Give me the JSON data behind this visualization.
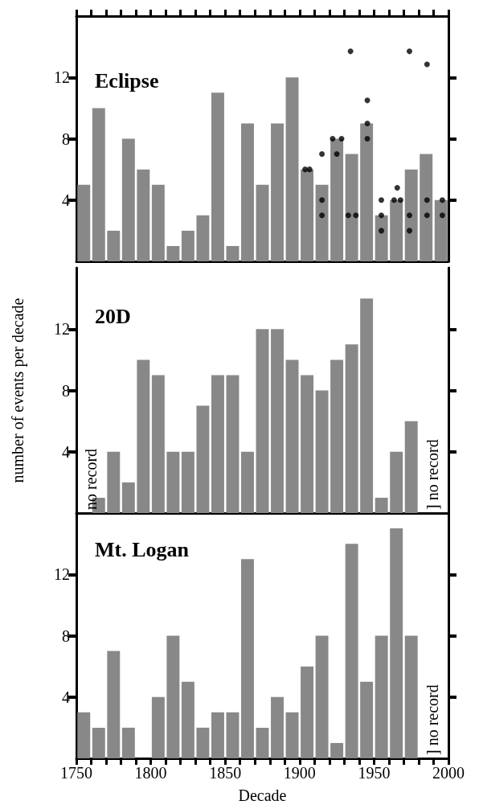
{
  "chart_data": [
    {
      "type": "bar",
      "title": "Eclipse",
      "xlim": [
        1750,
        2000
      ],
      "ylim": [
        0,
        16
      ],
      "yticks": [
        4,
        8,
        12
      ],
      "tick_labels": "y",
      "marker": "circle",
      "x": [
        1755,
        1765,
        1775,
        1785,
        1795,
        1805,
        1815,
        1825,
        1835,
        1845,
        1855,
        1865,
        1875,
        1885,
        1895,
        1905,
        1915,
        1925,
        1935,
        1945,
        1955,
        1965,
        1975,
        1985,
        1995
      ],
      "series": [
        {
          "color": "#888888",
          "values": [
            5,
            10,
            2,
            8,
            6,
            5,
            1,
            2,
            3,
            11,
            1,
            9,
            5,
            9,
            12,
            6,
            5,
            8,
            7,
            9,
            3,
            4,
            6,
            7,
            4
          ]
        },
        {
          "type": "scatter",
          "color": "#000000",
          "x": [
            1903.7,
            1906.7,
            1915,
            1915,
            1915,
            1922.2,
            1928.2,
            1925,
            1934.2,
            1932.7,
            1937.8,
            1945.5,
            1945.5,
            1945.5,
            1954.9,
            1954.9,
            1954.9,
            1965.6,
            1963.5,
            1967.8,
            1973.8,
            1973.8,
            1973.8,
            1985.6,
            1985.6,
            1985.6,
            1995.9,
            1995.9
          ],
          "values": [
            6,
            6,
            7,
            4,
            3,
            8,
            8,
            7,
            13.7,
            3,
            3,
            10.5,
            9,
            8,
            4,
            3,
            2,
            4.8,
            4,
            4,
            13.7,
            3,
            2,
            12.85,
            4,
            3,
            4,
            3
          ]
        }
      ]
    },
    {
      "type": "bar",
      "title": "20D",
      "ylabel": "number of events per decade",
      "xlim": [
        1750,
        2000
      ],
      "ylim": [
        0,
        16
      ],
      "yticks": [
        4,
        8,
        12
      ],
      "tick_labels": "y",
      "x": [
        1765,
        1775,
        1785,
        1795,
        1805,
        1815,
        1825,
        1835,
        1845,
        1855,
        1865,
        1875,
        1885,
        1895,
        1905,
        1915,
        1925,
        1935,
        1945,
        1955,
        1965,
        1975
      ],
      "series": [
        {
          "color": "#888888",
          "values": [
            1,
            4,
            2,
            10,
            9,
            4,
            4,
            7,
            9,
            9,
            4,
            12,
            12,
            10,
            9,
            8,
            10,
            11,
            14,
            1,
            4,
            6
          ]
        }
      ],
      "annotations": [
        "no record",
        "] no record"
      ]
    },
    {
      "type": "bar",
      "title": "Mt. Logan",
      "xlabel": "Decade",
      "xlim": [
        1750,
        2000
      ],
      "xticks": [
        1750,
        {
          "value": 1760,
          "label": null
        },
        {
          "value": 1770,
          "label": null
        },
        {
          "value": 1780,
          "label": null
        },
        {
          "value": 1790,
          "label": null
        },
        1800,
        {
          "value": 1810,
          "label": null
        },
        {
          "value": 1820,
          "label": null
        },
        {
          "value": 1830,
          "label": null
        },
        {
          "value": 1840,
          "label": null
        },
        1850,
        {
          "value": 1860,
          "label": null
        },
        {
          "value": 1870,
          "label": null
        },
        {
          "value": 1880,
          "label": null
        },
        {
          "value": 1890,
          "label": null
        },
        1900,
        {
          "value": 1910,
          "label": null
        },
        {
          "value": 1920,
          "label": null
        },
        {
          "value": 1930,
          "label": null
        },
        {
          "value": 1940,
          "label": null
        },
        1950,
        {
          "value": 1960,
          "label": null
        },
        {
          "value": 1970,
          "label": null
        },
        {
          "value": 1980,
          "label": null
        },
        {
          "value": 1990,
          "label": null
        },
        2000
      ],
      "ylim": [
        0,
        16
      ],
      "yticks": [
        4,
        8,
        12
      ],
      "x": [
        1755,
        1765,
        1775,
        1785,
        1805,
        1815,
        1825,
        1835,
        1845,
        1855,
        1865,
        1875,
        1885,
        1895,
        1905,
        1915,
        1925,
        1935,
        1945,
        1955,
        1965,
        1975
      ],
      "series": [
        {
          "color": "#888888",
          "values": [
            3,
            2,
            7,
            2,
            4,
            8,
            5,
            2,
            3,
            3,
            13,
            2,
            4,
            3,
            6,
            8,
            1,
            14,
            5,
            8,
            15,
            8
          ]
        }
      ],
      "annotations": [
        "] no record"
      ]
    }
  ]
}
